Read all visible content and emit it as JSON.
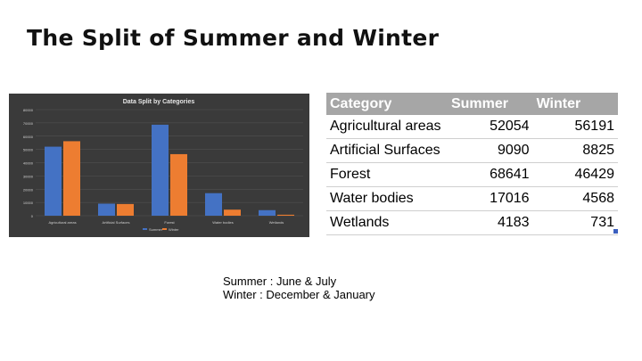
{
  "slide": {
    "title": "The Split of Summer and Winter",
    "notes": [
      "Summer : June & July",
      "Winter : December & January"
    ]
  },
  "colors": {
    "summer": "#4472c4",
    "winter": "#ed7d31",
    "chart_background": "#3a3a3a",
    "table_header": "#a6a6a6"
  },
  "table": {
    "headers": [
      "Category",
      "Summer",
      "Winter"
    ],
    "rows": [
      [
        "Agricultural areas",
        "52054",
        "56191"
      ],
      [
        "Artificial Surfaces",
        "9090",
        "8825"
      ],
      [
        "Forest",
        "68641",
        "46429"
      ],
      [
        "Water bodies",
        "17016",
        "4568"
      ],
      [
        "Wetlands",
        "4183",
        "731"
      ]
    ]
  },
  "chart_data": {
    "type": "bar",
    "title": "Data Split by Categories",
    "categories": [
      "Agricultural areas",
      "Artificial Surfaces",
      "Forest",
      "Water bodies",
      "Wetlands"
    ],
    "series": [
      {
        "name": "Summer",
        "values": [
          52054,
          9090,
          68641,
          17016,
          4183
        ]
      },
      {
        "name": "Winter",
        "values": [
          56191,
          8825,
          46429,
          4568,
          731
        ]
      }
    ],
    "ylim": [
      0,
      80000
    ],
    "yticks": [
      "0",
      "10000",
      "20000",
      "30000",
      "40000",
      "50000",
      "60000",
      "70000",
      "80000"
    ],
    "grid": true,
    "legend": "bottom"
  }
}
